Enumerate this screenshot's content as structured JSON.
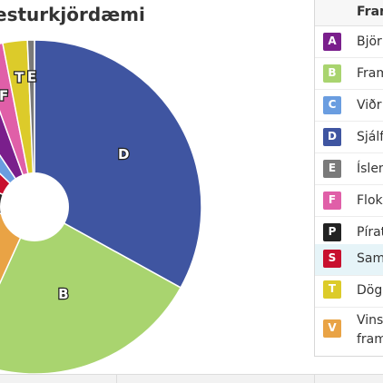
{
  "chart_data": {
    "type": "pie",
    "title": "esturkjördæmi",
    "slices": [
      {
        "label": "D",
        "value": 29.2,
        "color": "#3f55a1"
      },
      {
        "label": "B",
        "value": 21.0,
        "color": "#a9d46f"
      },
      {
        "label": "V",
        "value": 13.4,
        "color": "#e9a345"
      },
      {
        "label": "P",
        "value": 8.0,
        "color": "#222222"
      },
      {
        "label": "S",
        "value": 5.5,
        "color": "#c8102e"
      },
      {
        "label": "C",
        "value": 3.0,
        "color": "#6a9de0"
      },
      {
        "label": "A",
        "value": 3.4,
        "color": "#7a1f8c"
      },
      {
        "label": "F",
        "value": 2.2,
        "color": "#e05fa8"
      },
      {
        "label": "T",
        "value": 2.1,
        "color": "#dccb2a"
      },
      {
        "label": "E",
        "value": 0.6,
        "color": "#7a7a7a"
      }
    ]
  },
  "legend": {
    "header": "Fran",
    "items": [
      {
        "letter": "A",
        "name": "Björ",
        "color": "#7a1f8c"
      },
      {
        "letter": "B",
        "name": "Fram",
        "color": "#a9d46f"
      },
      {
        "letter": "C",
        "name": "Viðr",
        "color": "#6a9de0"
      },
      {
        "letter": "D",
        "name": "Sjálf",
        "color": "#3f55a1"
      },
      {
        "letter": "E",
        "name": "Íslen",
        "color": "#7a7a7a"
      },
      {
        "letter": "F",
        "name": "Flok",
        "color": "#e05fa8"
      },
      {
        "letter": "P",
        "name": "Pírat",
        "color": "#222222"
      },
      {
        "letter": "S",
        "name": "Sam",
        "color": "#c8102e"
      },
      {
        "letter": "T",
        "name": "Dögu",
        "color": "#dccb2a"
      },
      {
        "letter": "V",
        "name": "Vins",
        "name2": "fram",
        "color": "#e9a345"
      }
    ]
  }
}
